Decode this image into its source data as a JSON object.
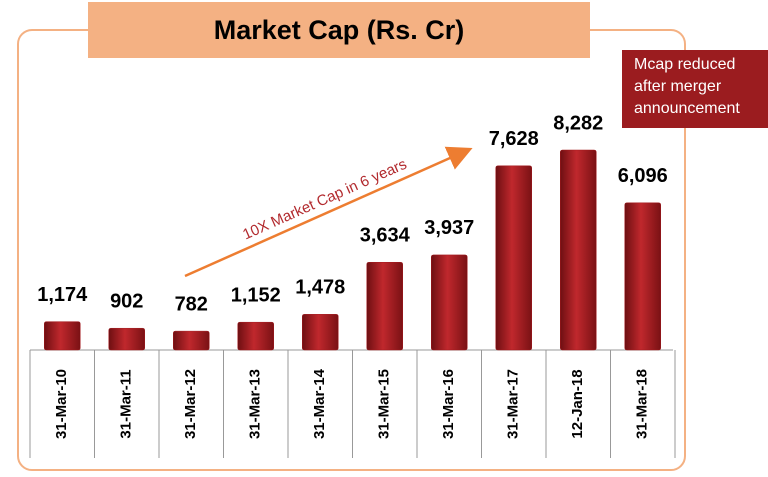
{
  "chart_data": {
    "type": "bar",
    "title": "Market Cap (Rs. Cr)",
    "categories": [
      "31-Mar-10",
      "31-Mar-11",
      "31-Mar-12",
      "31-Mar-13",
      "31-Mar-14",
      "31-Mar-15",
      "31-Mar-16",
      "31-Mar-17",
      "12-Jan-18",
      "31-Mar-18"
    ],
    "values": [
      1174,
      902,
      782,
      1152,
      1478,
      3634,
      3937,
      7628,
      8282,
      6096
    ],
    "value_labels": [
      "1,174",
      "902",
      "782",
      "1,152",
      "1,478",
      "3,634",
      "3,937",
      "7,628",
      "8,282",
      "6,096"
    ],
    "color": "#a3191d",
    "annotations": [
      "10X Market Cap in 6 years",
      "Mcap reduced after merger announcement"
    ]
  }
}
